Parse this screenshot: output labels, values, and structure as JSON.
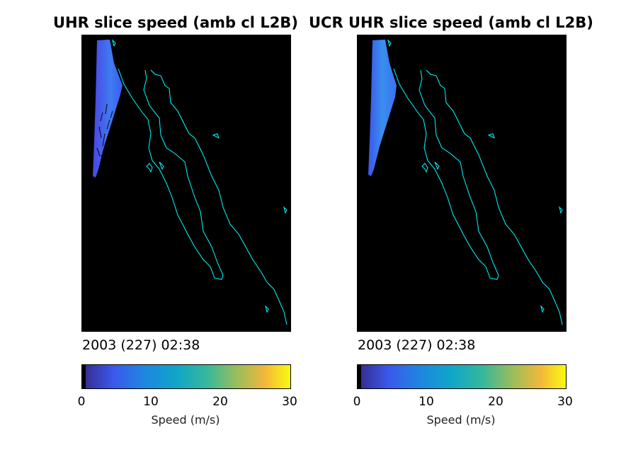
{
  "colors": {
    "coast": "#00ffff",
    "background": "#000000",
    "swath_dark": "#3b3fe0",
    "swath_light": "#3a8ff0"
  },
  "chart_data": [
    {
      "type": "heatmap",
      "title": "UHR slice speed (amb cl L2B)",
      "timestamp": "2003 (227) 02:38",
      "colorbar": {
        "label": "Speed (m/s)",
        "range": [
          0,
          30
        ],
        "ticks": [
          "0",
          "10",
          "20",
          "30"
        ],
        "colormap": "parula"
      },
      "approx_speed_range_m_s": [
        2,
        6
      ]
    },
    {
      "type": "heatmap",
      "title": "UCR UHR slice speed (amb cl L2B)",
      "timestamp": "2003 (227) 02:38",
      "colorbar": {
        "label": "Speed (m/s)",
        "range": [
          0,
          30
        ],
        "ticks": [
          "0",
          "10",
          "20",
          "30"
        ],
        "colormap": "parula"
      },
      "approx_speed_range_m_s": [
        3,
        7
      ]
    }
  ]
}
